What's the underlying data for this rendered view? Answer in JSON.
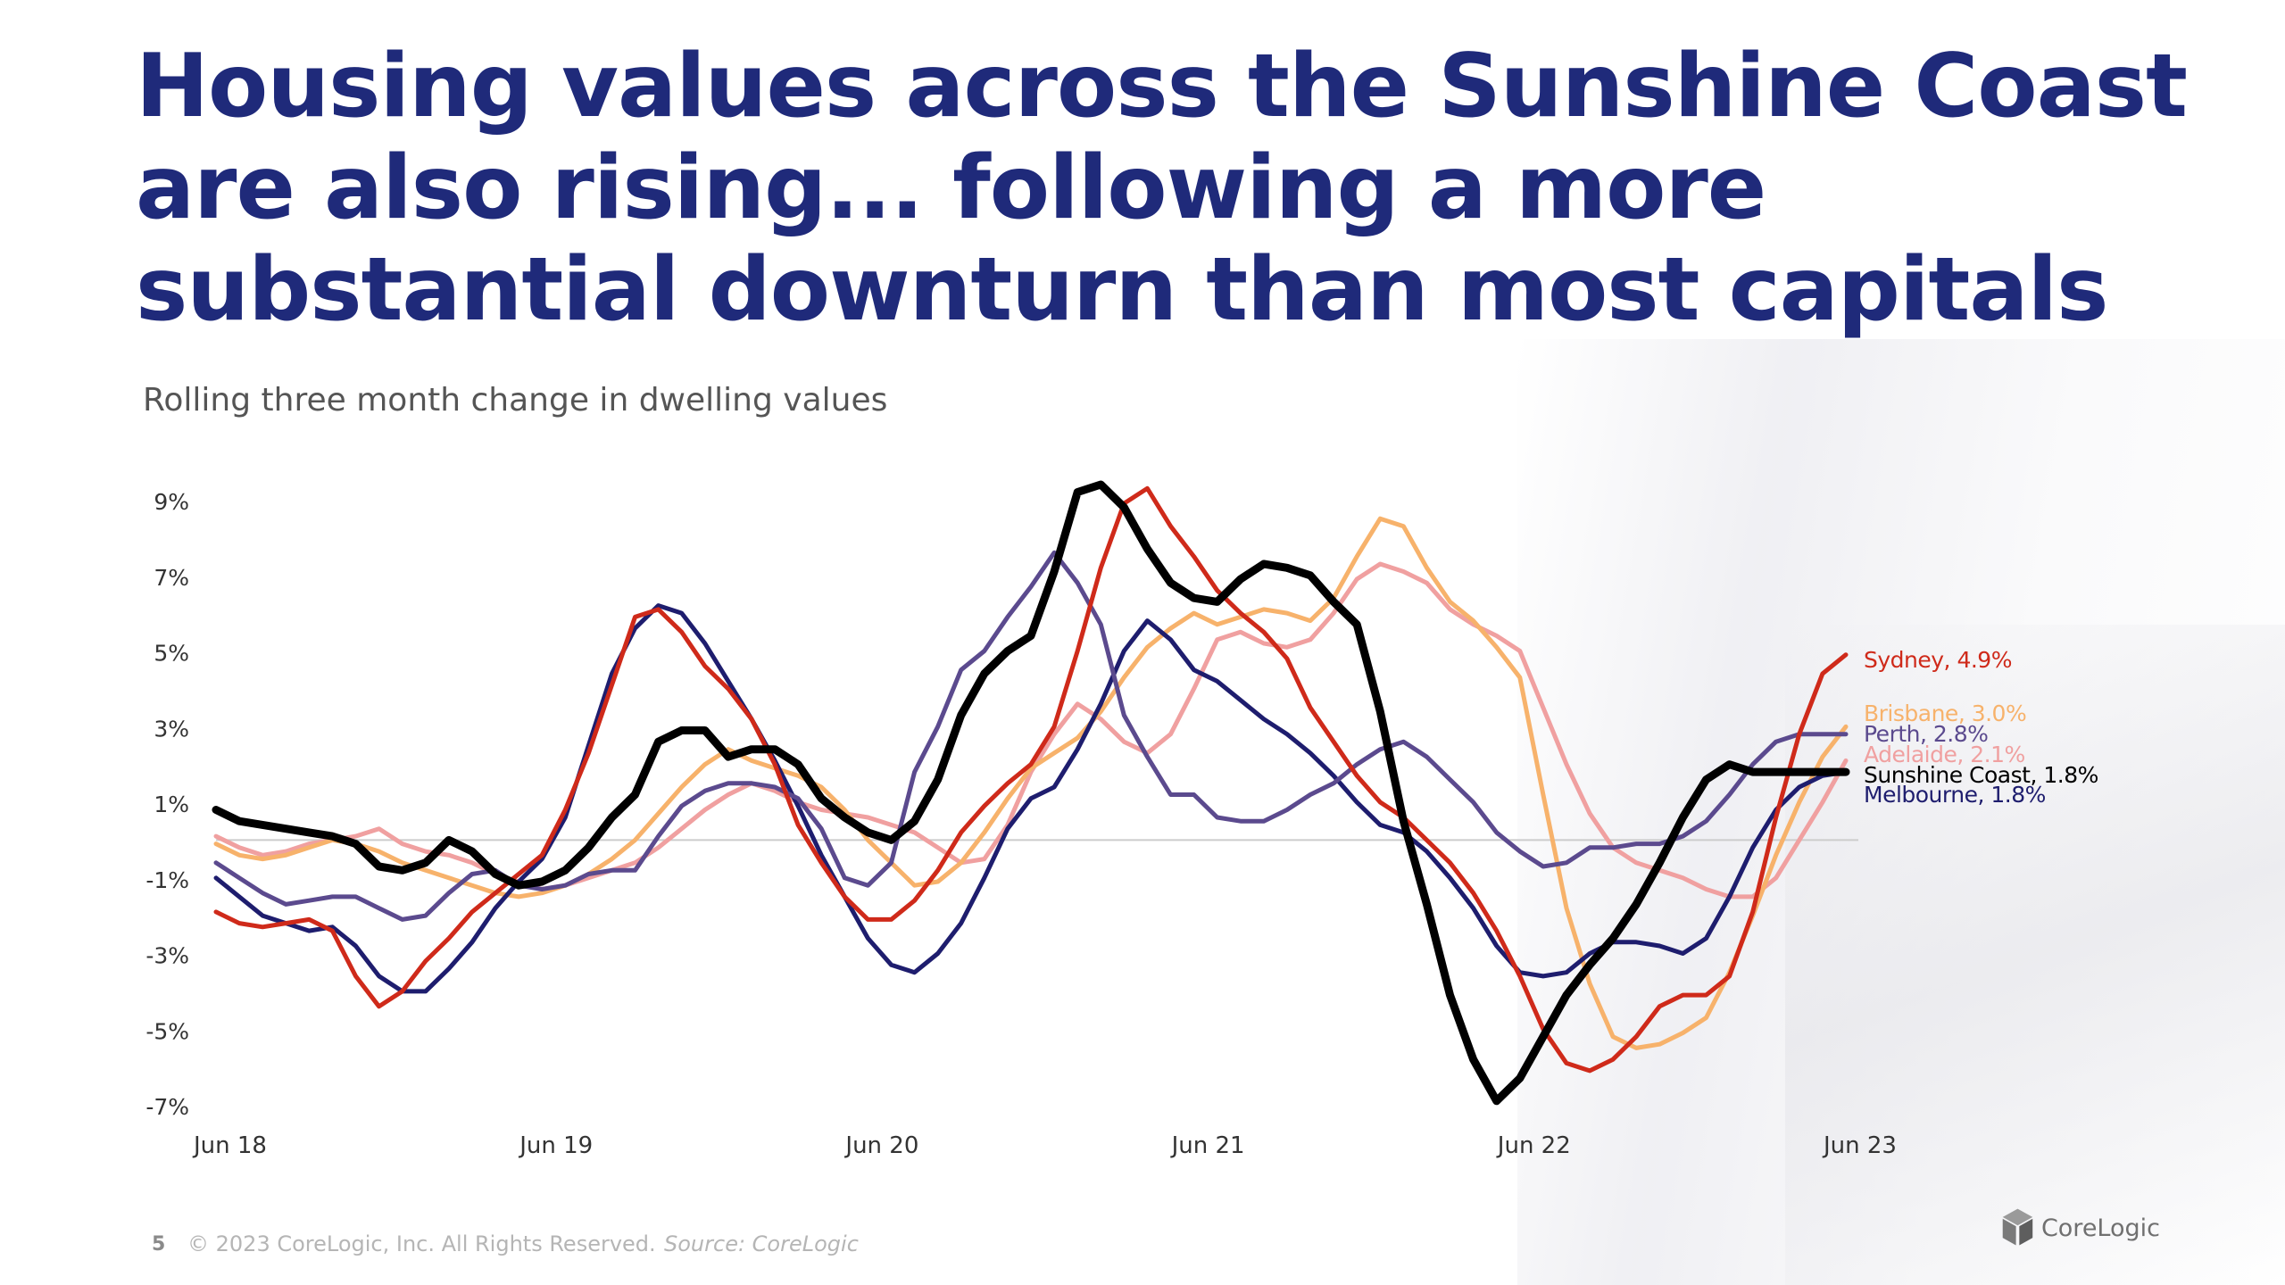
{
  "headline": "Housing values across the Sunshine Coast are also rising... following a more substantial downturn than most capitals",
  "subtitle": "Rolling three month change in dwelling values",
  "footer": {
    "page_number": "5",
    "copyright": "© 2023 CoreLogic, Inc. All Rights Reserved.",
    "source": "Source: CoreLogic"
  },
  "logo": {
    "text": "CoreLogic",
    "icon": "corelogic-cube-icon"
  },
  "chart_data": {
    "type": "line",
    "title": "",
    "subtitle": "Rolling three month change in dwelling values",
    "xlabel": "",
    "ylabel": "",
    "ylim": [
      -7,
      9
    ],
    "y_ticks": [
      "9%",
      "7%",
      "5%",
      "3%",
      "1%",
      "-1%",
      "-3%",
      "-5%",
      "-7%"
    ],
    "y_tick_values": [
      9,
      7,
      5,
      3,
      1,
      -1,
      -3,
      -5,
      -7
    ],
    "x_ticks": [
      "Jun 18",
      "Jun 19",
      "Jun 20",
      "Jun 21",
      "Jun 22",
      "Jun 23"
    ],
    "x_tick_months": [
      0,
      12,
      24,
      36,
      48,
      60
    ],
    "x_start": "Jun 18",
    "x_end": "Jun 23",
    "zero_line": true,
    "grid": false,
    "legend": "right-end labels",
    "series": [
      {
        "name": "Adelaide",
        "label": "Adelaide, 2.1%",
        "color": "#f0a0a0",
        "width": 5,
        "values": [
          0.1,
          -0.2,
          -0.4,
          -0.3,
          -0.1,
          0.0,
          0.1,
          0.3,
          -0.1,
          -0.3,
          -0.4,
          -0.6,
          -0.9,
          -1.1,
          -1.3,
          -1.2,
          -1.0,
          -0.8,
          -0.6,
          -0.2,
          0.3,
          0.8,
          1.2,
          1.5,
          1.3,
          1.0,
          0.8,
          0.7,
          0.6,
          0.4,
          0.2,
          -0.2,
          -0.6,
          -0.5,
          0.4,
          1.8,
          2.8,
          3.6,
          3.2,
          2.6,
          2.3,
          2.8,
          4.0,
          5.3,
          5.5,
          5.2,
          5.1,
          5.3,
          6.0,
          6.9,
          7.3,
          7.1,
          6.8,
          6.1,
          5.7,
          5.4,
          5.0,
          3.5,
          2.0,
          0.7,
          -0.2,
          -0.6,
          -0.8,
          -1.0,
          -1.3,
          -1.5,
          -1.5,
          -1.0,
          0.0,
          1.0,
          2.1
        ]
      },
      {
        "name": "Brisbane",
        "label": "Brisbane, 3.0%",
        "color": "#f7b26b",
        "width": 5,
        "values": [
          -0.1,
          -0.4,
          -0.5,
          -0.4,
          -0.2,
          0.0,
          -0.1,
          -0.3,
          -0.6,
          -0.8,
          -1.0,
          -1.2,
          -1.4,
          -1.5,
          -1.4,
          -1.2,
          -0.9,
          -0.5,
          0.0,
          0.7,
          1.4,
          2.0,
          2.4,
          2.1,
          1.9,
          1.7,
          1.4,
          0.8,
          0.0,
          -0.6,
          -1.2,
          -1.1,
          -0.6,
          0.2,
          1.1,
          1.9,
          2.3,
          2.7,
          3.4,
          4.3,
          5.1,
          5.6,
          6.0,
          5.7,
          5.9,
          6.1,
          6.0,
          5.8,
          6.4,
          7.5,
          8.5,
          8.3,
          7.2,
          6.3,
          5.8,
          5.1,
          4.3,
          1.2,
          -1.8,
          -3.8,
          -5.2,
          -5.5,
          -5.4,
          -5.1,
          -4.7,
          -3.5,
          -2.0,
          -0.4,
          1.0,
          2.2,
          3.0
        ]
      },
      {
        "name": "Melbourne",
        "label": "Melbourne, 1.8%",
        "color": "#1e1d6e",
        "width": 5,
        "values": [
          -1.0,
          -1.5,
          -2.0,
          -2.2,
          -2.4,
          -2.3,
          -2.8,
          -3.6,
          -4.0,
          -4.0,
          -3.4,
          -2.7,
          -1.8,
          -1.1,
          -0.5,
          0.6,
          2.5,
          4.4,
          5.6,
          6.2,
          6.0,
          5.2,
          4.2,
          3.2,
          2.1,
          0.9,
          -0.4,
          -1.5,
          -2.6,
          -3.3,
          -3.5,
          -3.0,
          -2.2,
          -1.0,
          0.3,
          1.1,
          1.4,
          2.4,
          3.6,
          5.0,
          5.8,
          5.3,
          4.5,
          4.2,
          3.7,
          3.2,
          2.8,
          2.3,
          1.7,
          1.0,
          0.4,
          0.2,
          -0.3,
          -1.0,
          -1.8,
          -2.8,
          -3.5,
          -3.6,
          -3.5,
          -3.0,
          -2.7,
          -2.7,
          -2.8,
          -3.0,
          -2.6,
          -1.5,
          -0.2,
          0.8,
          1.4,
          1.7,
          1.8
        ]
      },
      {
        "name": "Perth",
        "label": "Perth, 2.8%",
        "color": "#5b4a8e",
        "width": 5,
        "values": [
          -0.6,
          -1.0,
          -1.4,
          -1.7,
          -1.6,
          -1.5,
          -1.5,
          -1.8,
          -2.1,
          -2.0,
          -1.4,
          -0.9,
          -0.8,
          -1.2,
          -1.3,
          -1.2,
          -0.9,
          -0.8,
          -0.8,
          0.1,
          0.9,
          1.3,
          1.5,
          1.5,
          1.4,
          1.1,
          0.3,
          -1.0,
          -1.2,
          -0.6,
          1.8,
          3.0,
          4.5,
          5.0,
          5.9,
          6.7,
          7.6,
          6.8,
          5.7,
          3.3,
          2.2,
          1.2,
          1.2,
          0.6,
          0.5,
          0.5,
          0.8,
          1.2,
          1.5,
          2.0,
          2.4,
          2.6,
          2.2,
          1.6,
          1.0,
          0.2,
          -0.3,
          -0.7,
          -0.6,
          -0.2,
          -0.2,
          -0.1,
          -0.1,
          0.1,
          0.5,
          1.2,
          2.0,
          2.6,
          2.8,
          2.8,
          2.8
        ]
      },
      {
        "name": "Sydney",
        "label": "Sydney, 4.9%",
        "color": "#cf2a1a",
        "width": 5,
        "values": [
          -1.9,
          -2.2,
          -2.3,
          -2.2,
          -2.1,
          -2.4,
          -3.6,
          -4.4,
          -4.0,
          -3.2,
          -2.6,
          -1.9,
          -1.4,
          -0.9,
          -0.4,
          0.8,
          2.3,
          4.1,
          5.9,
          6.1,
          5.5,
          4.6,
          4.0,
          3.2,
          2.0,
          0.4,
          -0.6,
          -1.5,
          -2.1,
          -2.1,
          -1.6,
          -0.8,
          0.2,
          0.9,
          1.5,
          2.0,
          3.0,
          5.0,
          7.2,
          8.9,
          9.3,
          8.3,
          7.5,
          6.6,
          6.0,
          5.5,
          4.8,
          3.5,
          2.6,
          1.7,
          1.0,
          0.6,
          0.0,
          -0.6,
          -1.4,
          -2.4,
          -3.6,
          -5.0,
          -5.9,
          -6.1,
          -5.8,
          -5.2,
          -4.4,
          -4.1,
          -4.1,
          -3.6,
          -1.9,
          0.6,
          2.8,
          4.4,
          4.9
        ]
      },
      {
        "name": "Sunshine Coast",
        "label": "Sunshine Coast, 1.8%",
        "color": "#000000",
        "width": 9,
        "values": [
          0.8,
          0.5,
          0.4,
          0.3,
          0.2,
          0.1,
          -0.1,
          -0.7,
          -0.8,
          -0.6,
          0.0,
          -0.3,
          -0.9,
          -1.2,
          -1.1,
          -0.8,
          -0.2,
          0.6,
          1.2,
          2.6,
          2.9,
          2.9,
          2.2,
          2.4,
          2.4,
          2.0,
          1.1,
          0.6,
          0.2,
          0.0,
          0.5,
          1.6,
          3.3,
          4.4,
          5.0,
          5.4,
          7.1,
          9.2,
          9.4,
          8.8,
          7.7,
          6.8,
          6.4,
          6.3,
          6.9,
          7.3,
          7.2,
          7.0,
          6.3,
          5.7,
          3.4,
          0.5,
          -1.7,
          -4.1,
          -5.8,
          -6.9,
          -6.3,
          -5.2,
          -4.1,
          -3.3,
          -2.6,
          -1.7,
          -0.6,
          0.6,
          1.6,
          2.0,
          1.8,
          1.8,
          1.8,
          1.8,
          1.8
        ]
      }
    ]
  }
}
